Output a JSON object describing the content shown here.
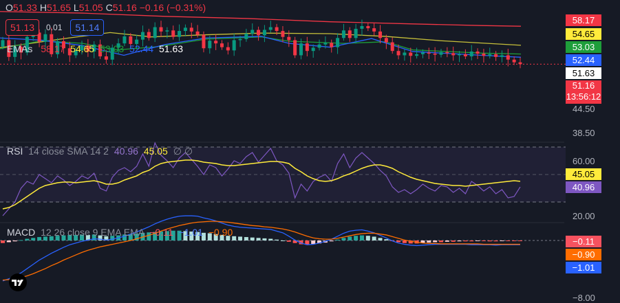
{
  "ohlc": {
    "open_label": "O",
    "open": "51.33",
    "high_label": "H",
    "high": "51.65",
    "low_label": "L",
    "low": "51.05",
    "close_label": "C",
    "close": "51.16",
    "change": "−0.16 (−0.31%)"
  },
  "quote": {
    "sell": "51.13",
    "spread": "0.01",
    "buy": "51.14"
  },
  "ema_legend": {
    "name": "EMAs",
    "values": [
      {
        "text": "58.17",
        "color": "#f23645"
      },
      {
        "text": "54.65",
        "color": "#ffeb3b"
      },
      {
        "text": "53.03",
        "color": "#1e9e3a"
      },
      {
        "text": "52.44",
        "color": "#2962ff"
      },
      {
        "text": "51.63",
        "color": "#ffffff"
      }
    ]
  },
  "rsi_legend": {
    "name": "RSI",
    "params": "14 close SMA 14 2",
    "rsi_value": "40.96",
    "sma_value": "45.05",
    "extra": "∅ ∅"
  },
  "macd_legend": {
    "name": "MACD",
    "params": "12 26 close 9 EMA EMA",
    "hist_value": "−0.11",
    "macd_value": "−1.01",
    "signal_value": "−0.90"
  },
  "price_axis_labels": [
    {
      "text": "58.17",
      "bg": "#f23645",
      "fg": "light"
    },
    {
      "text": "54.65",
      "bg": "#ffeb3b",
      "fg": "dark"
    },
    {
      "text": "53.03",
      "bg": "#1e9e3a",
      "fg": "light"
    },
    {
      "text": "52.44",
      "bg": "#2962ff",
      "fg": "light"
    },
    {
      "text": "51.63",
      "bg": "#ffffff",
      "fg": "dark"
    }
  ],
  "last_price": {
    "price": "51.16",
    "countdown": "13:56:12"
  },
  "price_ticks": [
    "44.50",
    "38.50"
  ],
  "rsi_ticks": [
    "60.00",
    "20.00"
  ],
  "rsi_axis_labels": [
    {
      "text": "45.05",
      "bg": "#ffeb3b",
      "fg": "dark"
    },
    {
      "text": "40.96",
      "bg": "#7e57c2",
      "fg": "light"
    }
  ],
  "macd_ticks": [
    "−8.00"
  ],
  "macd_axis_labels": [
    {
      "text": "−0.11",
      "bg": "#f7525f",
      "fg": "light"
    },
    {
      "text": "−0.90",
      "bg": "#ff6d00",
      "fg": "light"
    },
    {
      "text": "−1.01",
      "bg": "#2962ff",
      "fg": "light"
    }
  ],
  "chart_data": [
    {
      "type": "candlestick",
      "panel": "price",
      "last": 51.16,
      "ema_lines": [
        {
          "name": "58.17",
          "color": "#f23645",
          "points": [
            [
              0,
              60.9
            ],
            [
              120,
              60.6
            ],
            [
              240,
              60.0
            ],
            [
              360,
              59.6
            ],
            [
              480,
              59.0
            ],
            [
              600,
              58.6
            ],
            [
              700,
              58.3
            ],
            [
              757,
              58.17
            ]
          ]
        },
        {
          "name": "54.65",
          "color": "#c7c03a",
          "points": [
            [
              0,
              54.2
            ],
            [
              100,
              56.0
            ],
            [
              160,
              57.0
            ],
            [
              220,
              56.2
            ],
            [
              300,
              56.6
            ],
            [
              380,
              56.9
            ],
            [
              480,
              56.8
            ],
            [
              560,
              56.3
            ],
            [
              640,
              55.5
            ],
            [
              757,
              54.65
            ]
          ]
        },
        {
          "name": "53.03",
          "color": "#1e9e3a",
          "points": [
            [
              0,
              54.0
            ],
            [
              60,
              55.5
            ],
            [
              120,
              55.0
            ],
            [
              170,
              53.8
            ],
            [
              230,
              54.4
            ],
            [
              300,
              55.8
            ],
            [
              380,
              56.2
            ],
            [
              420,
              55.4
            ],
            [
              500,
              55.0
            ],
            [
              560,
              55.3
            ],
            [
              600,
              53.8
            ],
            [
              700,
              53.2
            ],
            [
              757,
              53.03
            ]
          ]
        },
        {
          "name": "52.44",
          "color": "#2962ff",
          "points": [
            [
              0,
              56.0
            ],
            [
              60,
              55.6
            ],
            [
              120,
              54.6
            ],
            [
              180,
              52.8
            ],
            [
              240,
              54.8
            ],
            [
              300,
              56.0
            ],
            [
              380,
              56.3
            ],
            [
              420,
              55.0
            ],
            [
              480,
              54.3
            ],
            [
              540,
              55.9
            ],
            [
              600,
              53.5
            ],
            [
              700,
              52.8
            ],
            [
              757,
              52.44
            ]
          ]
        }
      ],
      "candles": [
        55.6,
        52.5,
        54.4,
        53.3,
        56.2,
        57.0,
        55.3,
        56.7,
        53.0,
        55.4,
        54.1,
        52.8,
        53.7,
        54.6,
        53.5,
        54.8,
        52.6,
        52.0,
        54.2,
        55.0,
        56.3,
        54.9,
        55.7,
        57.1,
        56.0,
        58.0,
        57.2,
        57.4,
        56.2,
        57.3,
        57.9,
        57.2,
        56.6,
        54.1,
        55.5,
        55.0,
        54.3,
        53.7,
        55.6,
        55.8,
        56.8,
        57.5,
        56.5,
        57.5,
        58.0,
        57.3,
        56.2,
        55.6,
        52.8,
        55.0,
        53.6,
        54.2,
        54.8,
        55.1,
        54.3,
        56.0,
        57.4,
        56.0,
        57.7,
        58.2,
        57.8,
        57.2,
        56.0,
        55.2,
        53.6,
        52.8,
        53.3,
        52.7,
        53.0,
        53.3,
        53.1,
        52.9,
        53.4,
        53.2,
        52.8,
        53.0,
        52.6,
        53.5,
        53.1,
        52.7,
        53.0,
        52.5,
        52.8,
        52.0,
        51.5,
        51.16
      ]
    },
    {
      "type": "line",
      "panel": "rsi",
      "series": [
        {
          "name": "40.96",
          "color": "#7e57c2",
          "values": [
            20,
            25,
            30,
            40,
            45,
            43,
            50,
            47,
            44,
            49,
            46,
            42,
            45,
            49,
            47,
            51,
            40,
            38,
            48,
            53,
            55,
            52,
            56,
            65,
            56,
            73,
            64,
            60,
            55,
            62,
            66,
            61,
            56,
            50,
            57,
            55,
            49,
            54,
            60,
            58,
            63,
            66,
            59,
            64,
            69,
            60,
            57,
            51,
            33,
            43,
            38,
            45,
            48,
            50,
            45,
            58,
            65,
            55,
            62,
            66,
            62,
            58,
            53,
            49,
            41,
            37,
            39,
            36,
            39,
            43,
            40,
            38,
            42,
            41,
            37,
            40,
            36,
            45,
            42,
            38,
            41,
            36,
            39,
            33,
            34,
            40.96
          ]
        },
        {
          "name": "45.05",
          "color": "#ffeb3b",
          "values": [
            25,
            26,
            28,
            31,
            34,
            37,
            40,
            42,
            43,
            44,
            44.5,
            44.5,
            44,
            44.5,
            45,
            45.5,
            44.5,
            43,
            43,
            44,
            46,
            47.5,
            49,
            51.5,
            53,
            56,
            58,
            59,
            59.5,
            60,
            60.5,
            60.5,
            60,
            59,
            58.5,
            58,
            57,
            56.5,
            56.5,
            57,
            57.5,
            58,
            58.5,
            59,
            59.5,
            59.5,
            59,
            58,
            54.5,
            52,
            49,
            47,
            45.5,
            45,
            45.5,
            47,
            49,
            50.5,
            52.5,
            54.5,
            56,
            57,
            57,
            56,
            54.5,
            52,
            50,
            48,
            46.5,
            45.5,
            44.5,
            43.5,
            43,
            42.5,
            42,
            42,
            41.5,
            42,
            42.5,
            43,
            43.5,
            44,
            44.5,
            45,
            45.5,
            45.05
          ]
        }
      ]
    },
    {
      "type": "bar+line",
      "panel": "macd",
      "histogram": [
        -0.6,
        -0.4,
        -0.2,
        0.1,
        0.4,
        0.6,
        0.8,
        0.9,
        1.0,
        1.1,
        1.2,
        1.3,
        1.3,
        1.4,
        1.3,
        1.4,
        1.2,
        1.0,
        1.1,
        1.2,
        1.4,
        1.5,
        1.6,
        1.8,
        1.9,
        2.0,
        2.1,
        2.2,
        2.3,
        2.3,
        2.2,
        2.1,
        2.0,
        1.8,
        1.7,
        1.5,
        1.3,
        1.1,
        1.0,
        0.9,
        0.8,
        0.7,
        0.6,
        0.5,
        0.4,
        0.2,
        0.0,
        -0.3,
        -0.6,
        -0.9,
        -1.0,
        -0.9,
        -0.7,
        -0.5,
        -0.2,
        0.2,
        0.6,
        0.9,
        1.1,
        1.2,
        1.1,
        0.9,
        0.6,
        0.3,
        -0.1,
        -0.4,
        -0.6,
        -0.7,
        -0.7,
        -0.6,
        -0.5,
        -0.4,
        -0.4,
        -0.3,
        -0.3,
        -0.2,
        -0.2,
        -0.2,
        -0.1,
        -0.1,
        -0.2,
        -0.2,
        -0.1,
        -0.1,
        -0.1,
        -0.11
      ],
      "series": [
        {
          "name": "−1.01",
          "color": "#2962ff",
          "values": [
            -9.5,
            -9.0,
            -8.4,
            -7.6,
            -6.6,
            -5.6,
            -4.6,
            -3.8,
            -3.0,
            -2.3,
            -1.6,
            -1.0,
            -0.6,
            -0.2,
            0.1,
            0.4,
            0.3,
            0.1,
            0.3,
            0.6,
            1.0,
            1.5,
            2.0,
            2.6,
            3.2,
            3.9,
            4.5,
            5.0,
            5.4,
            5.7,
            5.8,
            5.8,
            5.7,
            5.3,
            5.0,
            4.6,
            4.1,
            3.6,
            3.3,
            3.1,
            3.0,
            2.9,
            2.8,
            2.7,
            2.6,
            2.2,
            1.8,
            1.0,
            0.1,
            -0.6,
            -1.0,
            -0.9,
            -0.6,
            -0.2,
            0.3,
            1.0,
            1.7,
            2.2,
            2.4,
            2.5,
            2.2,
            1.8,
            1.2,
            0.6,
            -0.1,
            -0.6,
            -0.9,
            -1.1,
            -1.2,
            -1.1,
            -1.0,
            -0.9,
            -0.9,
            -0.9,
            -0.9,
            -0.9,
            -0.9,
            -1.0,
            -1.0,
            -1.0,
            -1.0,
            -1.1,
            -1.0,
            -1.0,
            -1.0,
            -1.01
          ]
        },
        {
          "name": "−0.90",
          "color": "#ff6d00",
          "values": [
            -9.3,
            -9.2,
            -9.0,
            -8.7,
            -8.3,
            -7.8,
            -7.2,
            -6.6,
            -5.9,
            -5.3,
            -4.6,
            -4.0,
            -3.4,
            -2.8,
            -2.3,
            -1.9,
            -1.5,
            -1.2,
            -0.9,
            -0.6,
            -0.3,
            0.0,
            0.4,
            0.8,
            1.2,
            1.7,
            2.2,
            2.7,
            3.1,
            3.5,
            3.8,
            4.1,
            4.3,
            4.4,
            4.5,
            4.5,
            4.4,
            4.3,
            4.1,
            3.9,
            3.7,
            3.5,
            3.4,
            3.2,
            3.1,
            2.9,
            2.7,
            2.4,
            2.0,
            1.5,
            1.0,
            0.6,
            0.4,
            0.3,
            0.3,
            0.5,
            0.8,
            1.1,
            1.4,
            1.6,
            1.7,
            1.7,
            1.5,
            1.3,
            0.9,
            0.5,
            0.1,
            -0.2,
            -0.4,
            -0.6,
            -0.7,
            -0.7,
            -0.8,
            -0.8,
            -0.8,
            -0.8,
            -0.8,
            -0.8,
            -0.8,
            -0.9,
            -0.9,
            -0.9,
            -0.9,
            -0.9,
            -0.9,
            -0.9
          ]
        }
      ]
    }
  ]
}
